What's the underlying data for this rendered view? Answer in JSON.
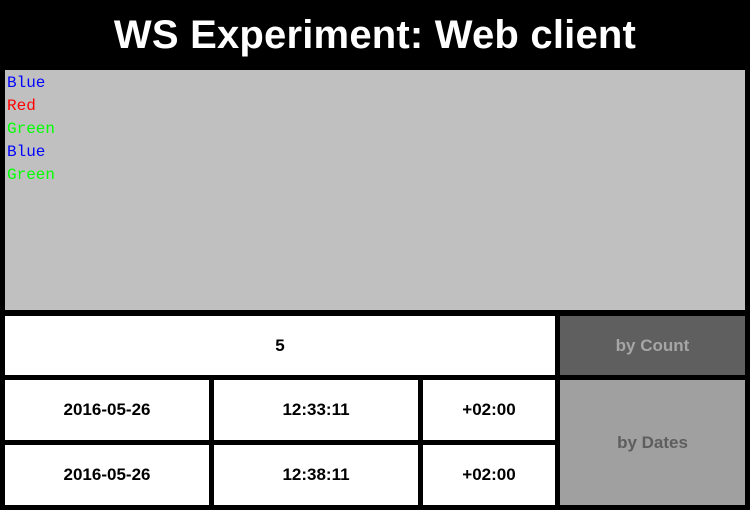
{
  "header": {
    "title": "WS Experiment: Web client"
  },
  "log": {
    "lines": [
      {
        "text": "Blue",
        "color": "#0000ff"
      },
      {
        "text": "Red",
        "color": "#ff0000"
      },
      {
        "text": "Green",
        "color": "#00ff00"
      },
      {
        "text": "Blue",
        "color": "#0000ff"
      },
      {
        "text": "Green",
        "color": "#00ff00"
      }
    ]
  },
  "count": {
    "value": "5",
    "button_label": "by Count"
  },
  "dates": {
    "from": {
      "date": "2016-05-26",
      "time": "12:33:11",
      "tz": "+02:00"
    },
    "to": {
      "date": "2016-05-26",
      "time": "12:38:11",
      "tz": "+02:00"
    },
    "button_label": "by Dates"
  },
  "colors": {
    "background": "#000000",
    "log_background": "#c0c0c0",
    "count_button_bg": "#5f5f5f",
    "dates_button_bg": "#a0a0a0"
  }
}
